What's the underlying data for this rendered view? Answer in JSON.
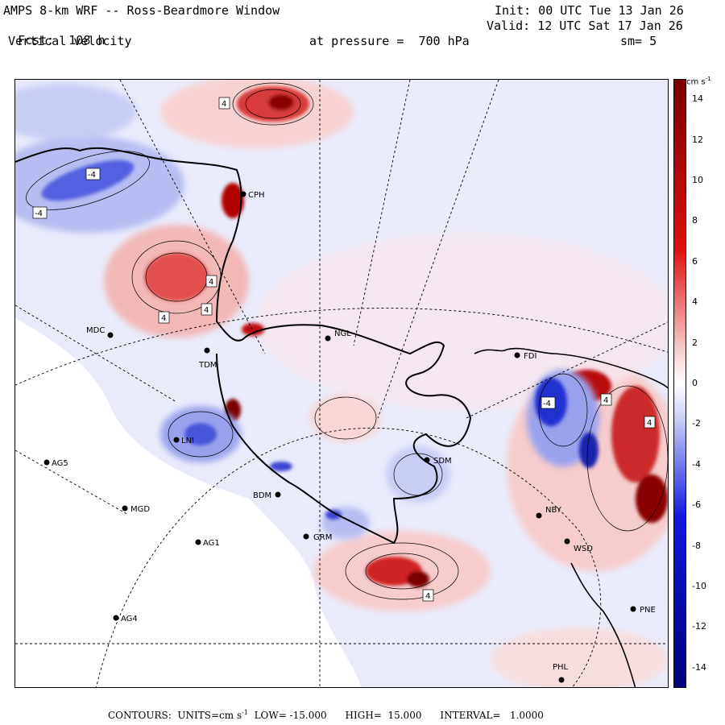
{
  "header": {
    "model": "AMPS 8-km WRF -- Ross-Beardmore Window",
    "forecast_label": "Fcst:",
    "forecast_hours": "108 h",
    "field": "Vertical velocity",
    "init": "Init: 00 UTC Tue 13 Jan 26",
    "valid": "Valid: 12 UTC Sat 17 Jan 26",
    "pressure": "at pressure =  700 hPa",
    "smoothing": "sm= 5"
  },
  "colorbar": {
    "units": "cm s",
    "units_exp": "-1",
    "ticks": [
      "14",
      "12",
      "10",
      "8",
      "6",
      "4",
      "2",
      "0",
      "-2",
      "-4",
      "-6",
      "-8",
      "-10",
      "-12",
      "-14"
    ],
    "tick_values": [
      14,
      12,
      10,
      8,
      6,
      4,
      2,
      0,
      -2,
      -4,
      -6,
      -8,
      -10,
      -12,
      -14
    ],
    "min": -15,
    "max": 15,
    "colors": {
      "dark_red": "#7a0000",
      "red": "#e01010",
      "light_red": "#f6c8c8",
      "white": "#ffffff",
      "light_blue": "#c8ccf6",
      "blue": "#1018e0",
      "dark_blue": "#00007a"
    }
  },
  "stations": [
    {
      "code": "CPH"
    },
    {
      "code": "MDC"
    },
    {
      "code": "NGL"
    },
    {
      "code": "TDM"
    },
    {
      "code": "FDI"
    },
    {
      "code": "LNI"
    },
    {
      "code": "AG5"
    },
    {
      "code": "SDM"
    },
    {
      "code": "BDM"
    },
    {
      "code": "MGD"
    },
    {
      "code": "NBY"
    },
    {
      "code": "AG1"
    },
    {
      "code": "GRM"
    },
    {
      "code": "WSD"
    },
    {
      "code": "AG4"
    },
    {
      "code": "PNE"
    },
    {
      "code": "PHL"
    }
  ],
  "contour_labels": [
    "4",
    "-4",
    "-4",
    "4",
    "4",
    "4",
    "-4",
    "4",
    "4",
    "4"
  ],
  "footer": {
    "contours": "CONTOURS:",
    "units_label": "UNITS=cm s",
    "units_exp": "-1",
    "low": "LOW= -15.000",
    "high": "HIGH=  15.000",
    "interval": "INTERVAL=   1.0000"
  }
}
